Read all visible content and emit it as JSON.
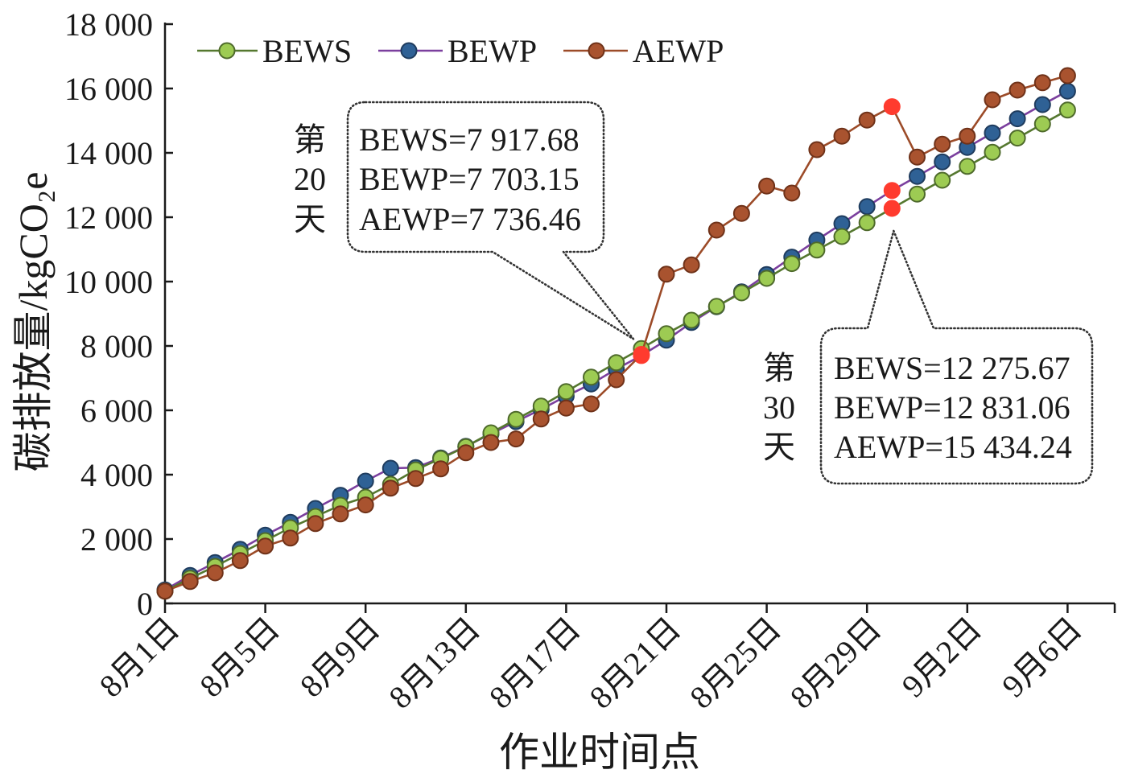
{
  "chart_data": {
    "type": "line",
    "xlabel": "作业时间点",
    "ylabel": "碳排放量/kgCO₂e",
    "ylim": [
      0,
      18000
    ],
    "grid": false,
    "legend": "top-left",
    "yticks": [
      {
        "value": 0,
        "label": "0"
      },
      {
        "value": 2000,
        "label": "2 000"
      },
      {
        "value": 4000,
        "label": "4 000"
      },
      {
        "value": 6000,
        "label": "6 000"
      },
      {
        "value": 8000,
        "label": "8 000"
      },
      {
        "value": 10000,
        "label": "10 000"
      },
      {
        "value": 12000,
        "label": "12 000"
      },
      {
        "value": 14000,
        "label": "14 000"
      },
      {
        "value": 16000,
        "label": "16 000"
      },
      {
        "value": 18000,
        "label": "18 000"
      }
    ],
    "xticks": [
      "8月1日",
      "8月5日",
      "8月9日",
      "8月13日",
      "8月17日",
      "8月21日",
      "8月25日",
      "8月29日",
      "9月2日",
      "9月6日"
    ],
    "x": [
      "8月1日",
      "8月2日",
      "8月3日",
      "8月4日",
      "8月5日",
      "8月6日",
      "8月7日",
      "8月8日",
      "8月9日",
      "8月10日",
      "8月11日",
      "8月12日",
      "8月13日",
      "8月14日",
      "8月15日",
      "8月16日",
      "8月17日",
      "8月18日",
      "8月19日",
      "8月20日",
      "8月21日",
      "8月22日",
      "8月23日",
      "8月24日",
      "8月25日",
      "8月26日",
      "8月27日",
      "8月28日",
      "8月29日",
      "8月30日",
      "8月31日",
      "9月1日",
      "9月2日",
      "9月3日",
      "9月4日",
      "9月5日",
      "9月6日"
    ],
    "series": [
      {
        "name": "BEWS",
        "line_color": "#55782f",
        "marker_fill": "#9dcb53",
        "marker_stroke": "#4e6a2b",
        "highlighted_x": [
          "8月30日"
        ],
        "values": [
          380,
          780,
          1150,
          1550,
          1950,
          2350,
          2700,
          3050,
          3300,
          3700,
          4150,
          4500,
          4870,
          5300,
          5720,
          6130,
          6580,
          7030,
          7480,
          7917.68,
          8380,
          8800,
          9230,
          9650,
          10100,
          10560,
          10980,
          11400,
          11830,
          12275.67,
          12720,
          13150,
          13580,
          14020,
          14460,
          14900,
          15330
        ]
      },
      {
        "name": "BEWP",
        "line_color": "#7b3f9e",
        "marker_fill": "#2f6195",
        "marker_stroke": "#1f3c5e",
        "highlighted_x": [
          "8月20日",
          "8月30日"
        ],
        "values": [
          420,
          870,
          1270,
          1680,
          2120,
          2520,
          2950,
          3360,
          3800,
          4200,
          4220,
          4520,
          4880,
          5270,
          5650,
          6030,
          6440,
          6820,
          7280,
          7703.15,
          8180,
          8730,
          9220,
          9680,
          10220,
          10760,
          11290,
          11800,
          12330,
          12831.06,
          13270,
          13720,
          14170,
          14620,
          15060,
          15500,
          15920
        ]
      },
      {
        "name": "AEWP",
        "line_color": "#9c4b28",
        "marker_fill": "#a9532f",
        "marker_stroke": "#6f3219",
        "highlighted_x": [
          "8月20日",
          "8月30日"
        ],
        "values": [
          380,
          680,
          950,
          1330,
          1780,
          2030,
          2480,
          2780,
          3060,
          3580,
          3880,
          4180,
          4680,
          5000,
          5110,
          5730,
          6070,
          6200,
          6950,
          7736.46,
          10230,
          10520,
          11600,
          12120,
          12970,
          12750,
          14100,
          14520,
          15020,
          15434.24,
          13870,
          14270,
          14520,
          15650,
          15950,
          16180,
          16400
        ]
      }
    ],
    "highlight_color": "#ff3b2e",
    "annotations": [
      {
        "x": "8月20日",
        "side_label": [
          "第",
          "20",
          "天"
        ],
        "lines": [
          "BEWS=7 917.68",
          "BEWP=7 703.15",
          "AEWP=7 736.46"
        ]
      },
      {
        "x": "8月30日",
        "side_label": [
          "第",
          "30",
          "天"
        ],
        "lines": [
          "BEWS=12 275.67",
          "BEWP=12 831.06",
          "AEWP=15 434.24"
        ]
      }
    ]
  }
}
